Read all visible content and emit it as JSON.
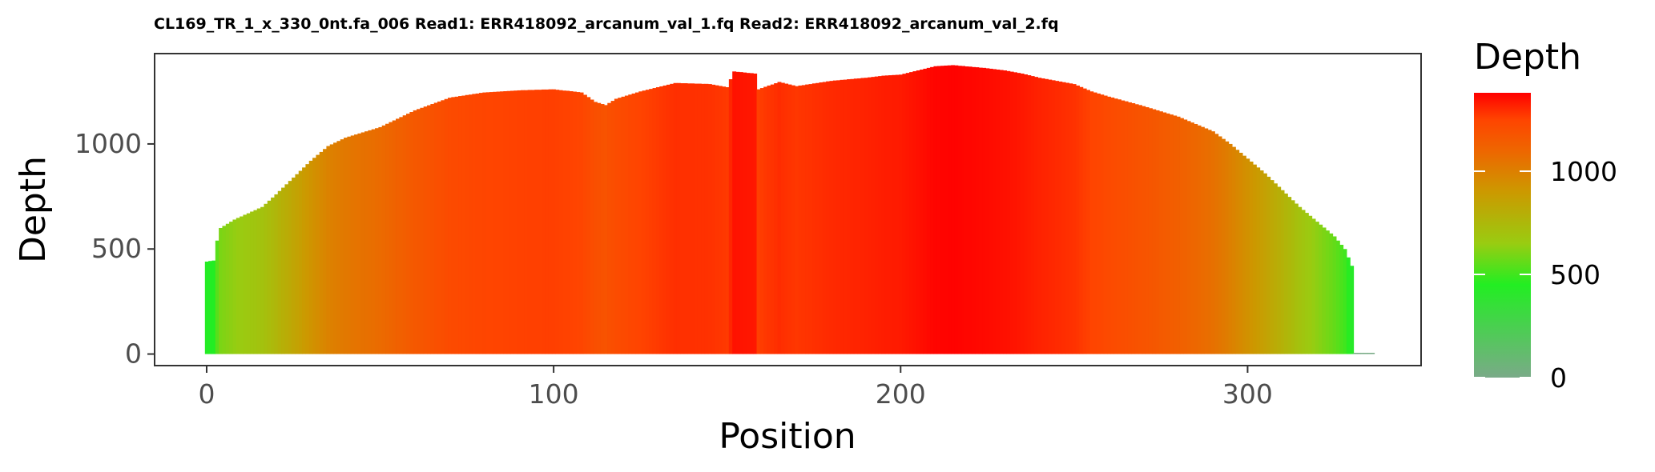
{
  "chart_data": {
    "type": "bar",
    "title": "CL169_TR_1_x_330_0nt.fa_006 Read1: ERR418092_arcanum_val_1.fq Read2: ERR418092_arcanum_val_2.fq",
    "xlabel": "Position",
    "ylabel": "Depth",
    "xlim": [
      -15,
      350
    ],
    "ylim": [
      -55,
      1430
    ],
    "x_ticks": [
      0,
      100,
      200,
      300
    ],
    "y_ticks": [
      0,
      500,
      1000
    ],
    "grid": false,
    "x_positions": [
      0,
      330
    ],
    "depth_profile_points": [
      [
        0,
        440
      ],
      [
        2,
        445
      ],
      [
        3,
        540
      ],
      [
        4,
        600
      ],
      [
        8,
        640
      ],
      [
        12,
        670
      ],
      [
        16,
        700
      ],
      [
        20,
        760
      ],
      [
        25,
        840
      ],
      [
        30,
        920
      ],
      [
        35,
        990
      ],
      [
        40,
        1030
      ],
      [
        50,
        1080
      ],
      [
        60,
        1160
      ],
      [
        70,
        1220
      ],
      [
        80,
        1245
      ],
      [
        90,
        1255
      ],
      [
        100,
        1260
      ],
      [
        108,
        1245
      ],
      [
        112,
        1200
      ],
      [
        115,
        1185
      ],
      [
        118,
        1215
      ],
      [
        125,
        1250
      ],
      [
        135,
        1290
      ],
      [
        145,
        1285
      ],
      [
        150,
        1270
      ],
      [
        152,
        1345
      ],
      [
        158,
        1335
      ],
      [
        159,
        1260
      ],
      [
        165,
        1295
      ],
      [
        170,
        1275
      ],
      [
        180,
        1300
      ],
      [
        190,
        1315
      ],
      [
        195,
        1325
      ],
      [
        200,
        1330
      ],
      [
        205,
        1350
      ],
      [
        210,
        1370
      ],
      [
        215,
        1375
      ],
      [
        220,
        1368
      ],
      [
        225,
        1360
      ],
      [
        230,
        1350
      ],
      [
        235,
        1335
      ],
      [
        240,
        1315
      ],
      [
        245,
        1300
      ],
      [
        250,
        1285
      ],
      [
        255,
        1250
      ],
      [
        260,
        1225
      ],
      [
        270,
        1180
      ],
      [
        280,
        1130
      ],
      [
        290,
        1060
      ],
      [
        295,
        1000
      ],
      [
        300,
        930
      ],
      [
        305,
        860
      ],
      [
        310,
        780
      ],
      [
        315,
        700
      ],
      [
        320,
        630
      ],
      [
        325,
        560
      ],
      [
        328,
        500
      ],
      [
        330,
        420
      ],
      [
        331,
        6
      ],
      [
        336,
        6
      ]
    ],
    "legend": {
      "title": "Depth",
      "position": "right",
      "ticks": [
        0,
        500,
        1000
      ],
      "range": [
        0,
        1380
      ],
      "colors": [
        {
          "at": 0,
          "color": "#7aaa88"
        },
        {
          "at": 450,
          "color": "#22ee22"
        },
        {
          "at": 650,
          "color": "#99cc11"
        },
        {
          "at": 900,
          "color": "#cc9900"
        },
        {
          "at": 1100,
          "color": "#ee6600"
        },
        {
          "at": 1250,
          "color": "#ff4400"
        },
        {
          "at": 1380,
          "color": "#ff0000"
        }
      ]
    }
  }
}
